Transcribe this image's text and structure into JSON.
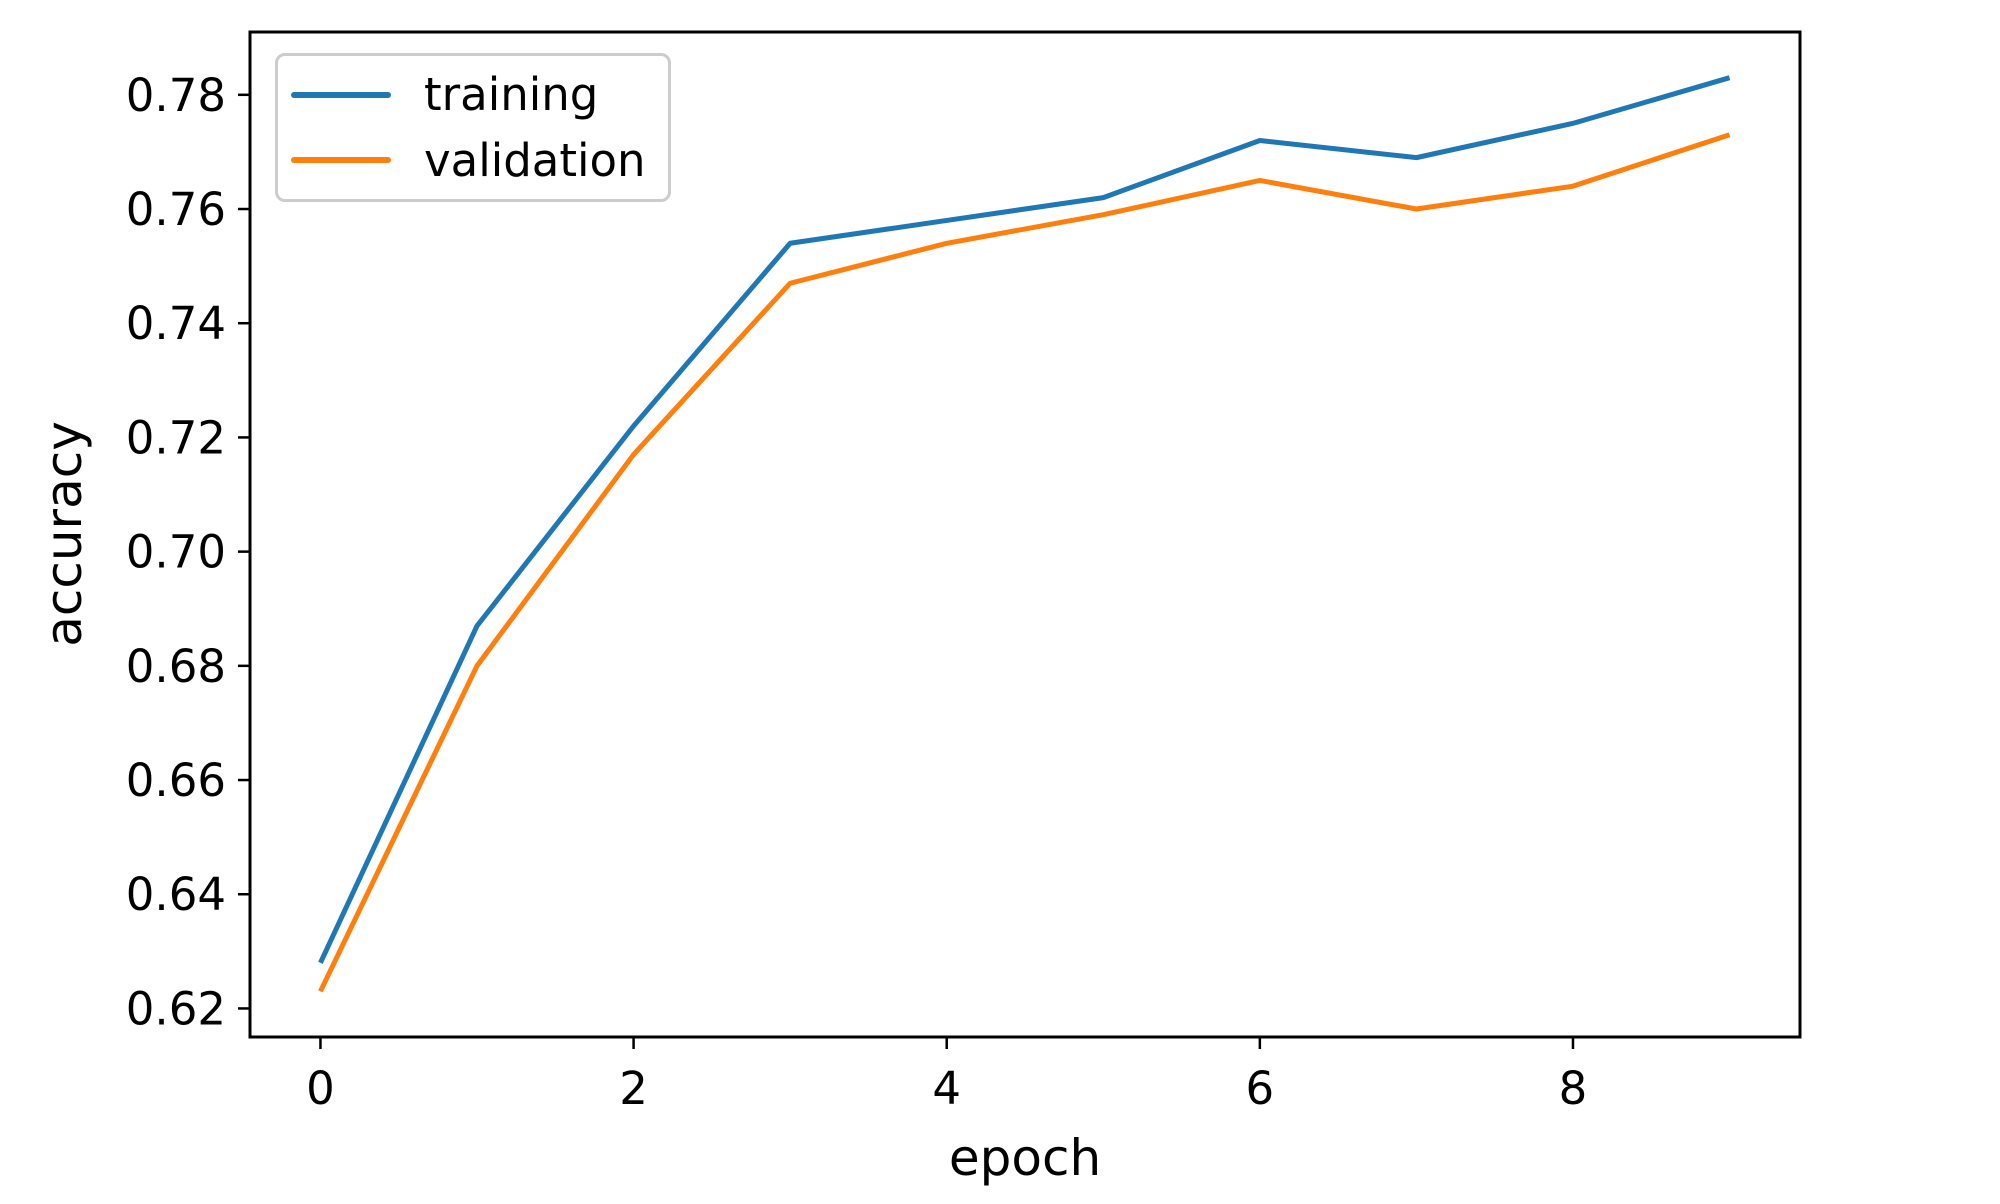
{
  "figure": {
    "background": "#ffffff",
    "spine_color": "#000000",
    "tick_color": "#000000",
    "text_color": "#000000",
    "legend_border_color": "#cccccc"
  },
  "chart_data": {
    "type": "line",
    "title": "",
    "xlabel": "epoch",
    "ylabel": "accuracy",
    "x": [
      0,
      1,
      2,
      3,
      4,
      5,
      6,
      7,
      8,
      9
    ],
    "series": [
      {
        "name": "training",
        "color": "#1f77b4",
        "values": [
          0.628,
          0.687,
          0.722,
          0.754,
          0.758,
          0.762,
          0.772,
          0.769,
          0.775,
          0.783
        ]
      },
      {
        "name": "validation",
        "color": "#ff7f0e",
        "values": [
          0.623,
          0.68,
          0.717,
          0.747,
          0.754,
          0.759,
          0.765,
          0.76,
          0.764,
          0.773
        ]
      }
    ],
    "xlim": [
      -0.45,
      9.45
    ],
    "ylim": [
      0.615,
      0.791
    ],
    "xticks": [
      0,
      2,
      4,
      6,
      8
    ],
    "yticks": [
      0.62,
      0.64,
      0.66,
      0.68,
      0.7,
      0.72,
      0.74,
      0.76,
      0.78
    ],
    "grid": false,
    "legend": {
      "position": "upper left",
      "entries": [
        "training",
        "validation"
      ]
    }
  }
}
